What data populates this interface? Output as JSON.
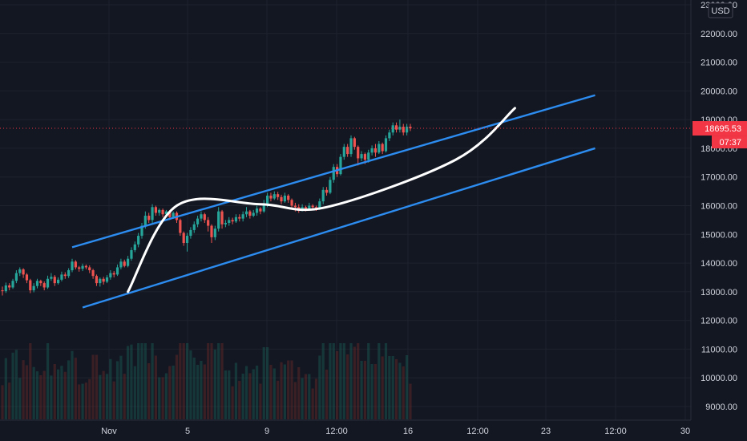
{
  "chart_data": {
    "type": "candlestick",
    "currency_label": "USD",
    "y_axis": {
      "ylim": [
        8600,
        23200
      ],
      "ticks": [
        "9000.00",
        "10000.00",
        "11000.00",
        "12000.00",
        "13000.00",
        "14000.00",
        "15000.00",
        "16000.00",
        "17000.00",
        "18000.00",
        "19000.00",
        "20000.00",
        "21000.00",
        "22000.00",
        "23000.00"
      ]
    },
    "x_axis": {
      "ticks": [
        "Nov",
        "5",
        "9",
        "12:00",
        "16",
        "12:00",
        "23",
        "12:00",
        "30"
      ]
    },
    "last_price": {
      "value": 18695.53,
      "label": "18695.53",
      "countdown": "07:37",
      "color": "#f23645"
    },
    "candles": [
      [
        13050,
        13020,
        13180,
        12870
      ],
      [
        13020,
        13220,
        13320,
        12960
      ],
      [
        13220,
        13150,
        13300,
        13050
      ],
      [
        13150,
        13380,
        13450,
        13100
      ],
      [
        13380,
        13650,
        13750,
        13300
      ],
      [
        13650,
        13780,
        13850,
        13550
      ],
      [
        13780,
        13600,
        13820,
        13480
      ],
      [
        13600,
        13400,
        13650,
        13300
      ],
      [
        13400,
        13050,
        13450,
        12950
      ],
      [
        13050,
        13200,
        13300,
        12980
      ],
      [
        13200,
        13380,
        13450,
        13120
      ],
      [
        13380,
        13300,
        13420,
        13200
      ],
      [
        13300,
        13150,
        13360,
        13050
      ],
      [
        13150,
        13450,
        13560,
        13100
      ],
      [
        13450,
        13520,
        13650,
        13380
      ],
      [
        13520,
        13300,
        13580,
        13200
      ],
      [
        13300,
        13420,
        13500,
        13250
      ],
      [
        13420,
        13600,
        13700,
        13360
      ],
      [
        13600,
        13550,
        13680,
        13450
      ],
      [
        13550,
        13750,
        13820,
        13480
      ],
      [
        13750,
        14050,
        14150,
        13680
      ],
      [
        14050,
        13850,
        14100,
        13780
      ],
      [
        13850,
        13800,
        13900,
        13700
      ],
      [
        13800,
        13900,
        13980,
        13720
      ],
      [
        13900,
        13850,
        13950,
        13780
      ],
      [
        13850,
        13750,
        13920,
        13650
      ],
      [
        13750,
        13550,
        13800,
        13450
      ],
      [
        13550,
        13300,
        13600,
        13200
      ],
      [
        13300,
        13450,
        13500,
        13180
      ],
      [
        13450,
        13350,
        13520,
        13250
      ],
      [
        13350,
        13500,
        13580,
        13300
      ],
      [
        13500,
        13650,
        13750,
        13420
      ],
      [
        13650,
        13600,
        13720,
        13500
      ],
      [
        13600,
        13850,
        13950,
        13550
      ],
      [
        13850,
        14050,
        14150,
        13780
      ],
      [
        14050,
        13900,
        14120,
        13850
      ],
      [
        13900,
        14150,
        14250,
        13850
      ],
      [
        14150,
        14450,
        14550,
        14080
      ],
      [
        14450,
        14650,
        14750,
        14380
      ],
      [
        14650,
        14950,
        15050,
        14550
      ],
      [
        14950,
        15300,
        15400,
        14850
      ],
      [
        15300,
        15650,
        15800,
        15200
      ],
      [
        15650,
        15500,
        15750,
        15400
      ],
      [
        15500,
        15950,
        16050,
        15400
      ],
      [
        15950,
        15750,
        16000,
        15650
      ],
      [
        15750,
        15850,
        15900,
        15650
      ],
      [
        15850,
        15700,
        15900,
        15600
      ],
      [
        15700,
        15800,
        15850,
        15600
      ],
      [
        15800,
        15600,
        15850,
        15500
      ],
      [
        15600,
        15750,
        15800,
        15550
      ],
      [
        15750,
        15500,
        15800,
        15400
      ],
      [
        15500,
        15050,
        15550,
        14950
      ],
      [
        15050,
        14700,
        15100,
        14600
      ],
      [
        14700,
        14950,
        15050,
        14400
      ],
      [
        14950,
        15150,
        15250,
        14850
      ],
      [
        15150,
        15350,
        15450,
        15050
      ],
      [
        15350,
        15550,
        15650,
        15250
      ],
      [
        15550,
        15700,
        15800,
        15450
      ],
      [
        15700,
        15500,
        15750,
        15400
      ],
      [
        15500,
        15300,
        15600,
        15100
      ],
      [
        15300,
        14900,
        15350,
        14700
      ],
      [
        14900,
        15200,
        15300,
        14800
      ],
      [
        15200,
        15800,
        15950,
        15100
      ],
      [
        15800,
        15350,
        15850,
        15200
      ],
      [
        15350,
        15400,
        15500,
        15250
      ],
      [
        15400,
        15500,
        15600,
        15300
      ],
      [
        15500,
        15450,
        15580,
        15350
      ],
      [
        15450,
        15600,
        15700,
        15400
      ],
      [
        15600,
        15550,
        15700,
        15450
      ],
      [
        15550,
        15700,
        15800,
        15450
      ],
      [
        15700,
        15800,
        15950,
        15600
      ],
      [
        15800,
        15650,
        15850,
        15550
      ],
      [
        15650,
        15750,
        15850,
        15600
      ],
      [
        15750,
        15900,
        16000,
        15650
      ],
      [
        15900,
        15800,
        15950,
        15700
      ],
      [
        15800,
        16050,
        16200,
        15750
      ],
      [
        16050,
        16350,
        16450,
        15950
      ],
      [
        16350,
        16250,
        16450,
        16150
      ],
      [
        16250,
        16400,
        16500,
        16200
      ],
      [
        16400,
        16300,
        16480,
        16200
      ],
      [
        16300,
        16150,
        16380,
        16050
      ],
      [
        16150,
        16350,
        16450,
        16100
      ],
      [
        16350,
        16200,
        16400,
        16100
      ],
      [
        16200,
        16000,
        16250,
        15900
      ],
      [
        16000,
        15950,
        16100,
        15800
      ],
      [
        15950,
        15850,
        16050,
        15750
      ],
      [
        15850,
        15950,
        16050,
        15800
      ],
      [
        15950,
        15900,
        16000,
        15800
      ],
      [
        15900,
        16000,
        16100,
        15850
      ],
      [
        16000,
        15950,
        16050,
        15850
      ],
      [
        15950,
        15900,
        16000,
        15820
      ],
      [
        15900,
        16150,
        16250,
        15850
      ],
      [
        16150,
        16550,
        16650,
        16050
      ],
      [
        16550,
        16450,
        16650,
        16350
      ],
      [
        16450,
        16900,
        17000,
        16400
      ],
      [
        16900,
        17350,
        17450,
        16800
      ],
      [
        17350,
        17100,
        17450,
        17000
      ],
      [
        17100,
        17700,
        17800,
        17050
      ],
      [
        17700,
        18050,
        18150,
        17600
      ],
      [
        18050,
        17800,
        18150,
        17700
      ],
      [
        17800,
        18350,
        18450,
        17700
      ],
      [
        18350,
        18050,
        18400,
        17950
      ],
      [
        18050,
        17650,
        18100,
        17400
      ],
      [
        17650,
        17800,
        17900,
        17550
      ],
      [
        17800,
        17600,
        17850,
        17450
      ],
      [
        17600,
        17850,
        17950,
        17500
      ],
      [
        17850,
        18000,
        18100,
        17750
      ],
      [
        18000,
        17850,
        18150,
        17700
      ],
      [
        17850,
        18150,
        18250,
        17800
      ],
      [
        18150,
        17900,
        18200,
        17800
      ],
      [
        17900,
        18350,
        18450,
        17850
      ],
      [
        18350,
        18550,
        18650,
        18250
      ],
      [
        18550,
        18800,
        18900,
        18450
      ],
      [
        18800,
        18650,
        18900,
        18550
      ],
      [
        18650,
        18750,
        19000,
        18550
      ],
      [
        18750,
        18550,
        18850,
        18450
      ],
      [
        18550,
        18750,
        18850,
        18450
      ],
      [
        18750,
        18695,
        18850,
        18600
      ]
    ],
    "annotations": {
      "channel_upper": [
        [
          20,
          14550
        ],
        [
          170,
          19850
        ]
      ],
      "channel_lower": [
        [
          23,
          12450
        ],
        [
          170,
          18000
        ]
      ],
      "curve": [
        [
          36,
          13000
        ],
        [
          50,
          16000
        ],
        [
          74,
          16050
        ],
        [
          93,
          15950
        ],
        [
          130,
          17600
        ],
        [
          147,
          19400
        ]
      ]
    },
    "colors": {
      "background": "#131722",
      "grid": "#1e222d",
      "up": "#26a69a",
      "down": "#ef5350",
      "channel": "#2962ff",
      "channel_draw": "#2d8cf0",
      "curve": "#ffffff",
      "axis_text": "#d1d4dc",
      "price_line": "#f23645"
    }
  }
}
